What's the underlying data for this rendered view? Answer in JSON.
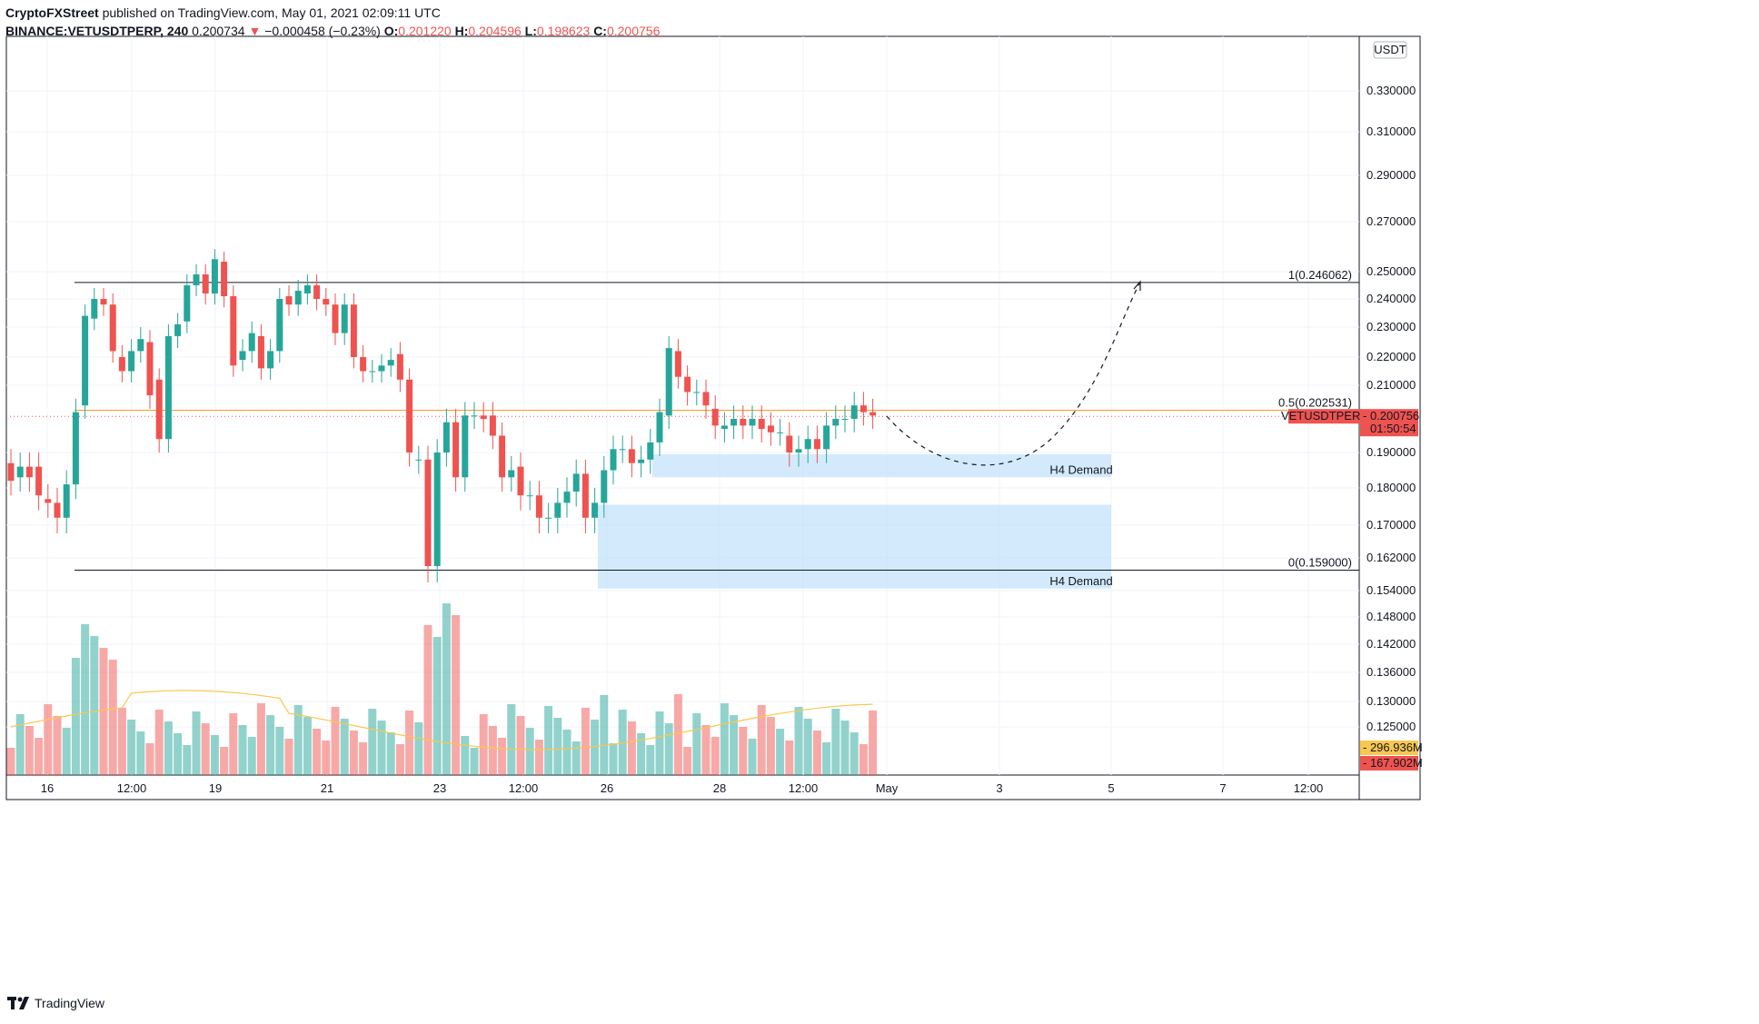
{
  "header": {
    "author": "CryptoFXStreet",
    "published": "published on TradingView.com, May 01, 2021 02:09:11 UTC",
    "symbol": "BINANCE:VETUSDTPERP, 240",
    "last": "0.200734",
    "change": "−0.000458 (−0.23%)",
    "o_label": "O:",
    "o": "0.201220",
    "h_label": "H:",
    "h": "0.204596",
    "l_label": "L:",
    "l": "0.198623",
    "c_label": "C:",
    "c": "0.200756"
  },
  "footer": {
    "brand": "TradingView"
  },
  "chart_data": {
    "type": "candlestick",
    "currency_label": "USDT",
    "y_ticks": [
      "0.330000",
      "0.310000",
      "0.290000",
      "0.270000",
      "0.250000",
      "0.240000",
      "0.230000",
      "0.220000",
      "0.210000",
      "0.190000",
      "0.180000",
      "0.170000",
      "0.162000",
      "0.154000",
      "0.148000",
      "0.142000",
      "0.136000",
      "0.130000",
      "0.125000"
    ],
    "x_ticks": [
      "16",
      "12:00",
      "19",
      "21",
      "23",
      "12:00",
      "26",
      "28",
      "12:00",
      "May",
      "3",
      "5",
      "7",
      "12:00"
    ],
    "levels": [
      {
        "label": "1(0.246062)",
        "value": 0.246062,
        "color": "#131722"
      },
      {
        "label": "0.5(0.202531)",
        "value": 0.202531,
        "color": "#f7931a"
      },
      {
        "label": "0(0.159000)",
        "value": 0.159,
        "color": "#131722"
      }
    ],
    "zones": [
      {
        "label": "H4 Demand",
        "top": 0.1895,
        "bottom": 0.183
      },
      {
        "label": "H4 Demand",
        "top": 0.1755,
        "bottom": 0.1545
      }
    ],
    "price_tag": {
      "symbol": "VETUSDTPERP",
      "price": "0.200756",
      "countdown": "01:50:54"
    },
    "volume_tags": [
      {
        "value": "296.936M",
        "color": "#f9c74f"
      },
      {
        "value": "167.902M",
        "color": "#ef5350"
      }
    ],
    "candles": [
      [
        0.187,
        0.182
      ],
      [
        0.183,
        0.186
      ],
      [
        0.186,
        0.183
      ],
      [
        0.186,
        0.178
      ],
      [
        0.177,
        0.176
      ],
      [
        0.176,
        0.172
      ],
      [
        0.172,
        0.181
      ],
      [
        0.181,
        0.202
      ],
      [
        0.204,
        0.234
      ],
      [
        0.233,
        0.24
      ],
      [
        0.24,
        0.238
      ],
      [
        0.238,
        0.222
      ],
      [
        0.22,
        0.215
      ],
      [
        0.215,
        0.222
      ],
      [
        0.222,
        0.226
      ],
      [
        0.225,
        0.207
      ],
      [
        0.212,
        0.194
      ],
      [
        0.194,
        0.227
      ],
      [
        0.227,
        0.231
      ],
      [
        0.232,
        0.245
      ],
      [
        0.245,
        0.249
      ],
      [
        0.249,
        0.242
      ],
      [
        0.242,
        0.255
      ],
      [
        0.254,
        0.241
      ],
      [
        0.241,
        0.217
      ],
      [
        0.219,
        0.222
      ],
      [
        0.222,
        0.228
      ],
      [
        0.227,
        0.216
      ],
      [
        0.216,
        0.222
      ],
      [
        0.222,
        0.24
      ],
      [
        0.241,
        0.238
      ],
      [
        0.238,
        0.243
      ],
      [
        0.242,
        0.245
      ],
      [
        0.245,
        0.24
      ],
      [
        0.24,
        0.238
      ],
      [
        0.238,
        0.228
      ],
      [
        0.228,
        0.238
      ],
      [
        0.238,
        0.22
      ],
      [
        0.22,
        0.215
      ],
      [
        0.215,
        0.215
      ],
      [
        0.215,
        0.217
      ],
      [
        0.217,
        0.219
      ],
      [
        0.221,
        0.212
      ],
      [
        0.212,
        0.19
      ],
      [
        0.188,
        0.188
      ],
      [
        0.188,
        0.16
      ],
      [
        0.16,
        0.19
      ],
      [
        0.19,
        0.199
      ],
      [
        0.199,
        0.183
      ],
      [
        0.183,
        0.201
      ],
      [
        0.201,
        0.201
      ],
      [
        0.201,
        0.2
      ],
      [
        0.201,
        0.195
      ],
      [
        0.195,
        0.183
      ],
      [
        0.183,
        0.185
      ],
      [
        0.186,
        0.178
      ],
      [
        0.178,
        0.178
      ],
      [
        0.178,
        0.172
      ],
      [
        0.172,
        0.172
      ],
      [
        0.172,
        0.176
      ],
      [
        0.176,
        0.179
      ],
      [
        0.179,
        0.184
      ],
      [
        0.184,
        0.172
      ],
      [
        0.172,
        0.176
      ],
      [
        0.176,
        0.185
      ],
      [
        0.185,
        0.191
      ],
      [
        0.191,
        0.191
      ],
      [
        0.191,
        0.187
      ],
      [
        0.187,
        0.188
      ],
      [
        0.188,
        0.193
      ],
      [
        0.193,
        0.202
      ],
      [
        0.201,
        0.223
      ],
      [
        0.222,
        0.213
      ],
      [
        0.213,
        0.208
      ],
      [
        0.208,
        0.208
      ],
      [
        0.208,
        0.204
      ],
      [
        0.203,
        0.198
      ],
      [
        0.197,
        0.198
      ],
      [
        0.198,
        0.2
      ],
      [
        0.2,
        0.198
      ],
      [
        0.198,
        0.2
      ],
      [
        0.2,
        0.197
      ],
      [
        0.198,
        0.196
      ],
      [
        0.196,
        0.196
      ],
      [
        0.195,
        0.19
      ],
      [
        0.19,
        0.191
      ],
      [
        0.191,
        0.194
      ],
      [
        0.194,
        0.191
      ],
      [
        0.191,
        0.198
      ],
      [
        0.198,
        0.2
      ],
      [
        0.2,
        0.2
      ],
      [
        0.2,
        0.204
      ],
      [
        0.204,
        0.202
      ],
      [
        0.202,
        0.201
      ]
    ],
    "projection": [
      [
        0.201,
        0.202
      ],
      [
        0.184,
        0.196
      ],
      [
        0.186,
        0.184
      ],
      [
        0.246,
        0.246
      ]
    ]
  }
}
